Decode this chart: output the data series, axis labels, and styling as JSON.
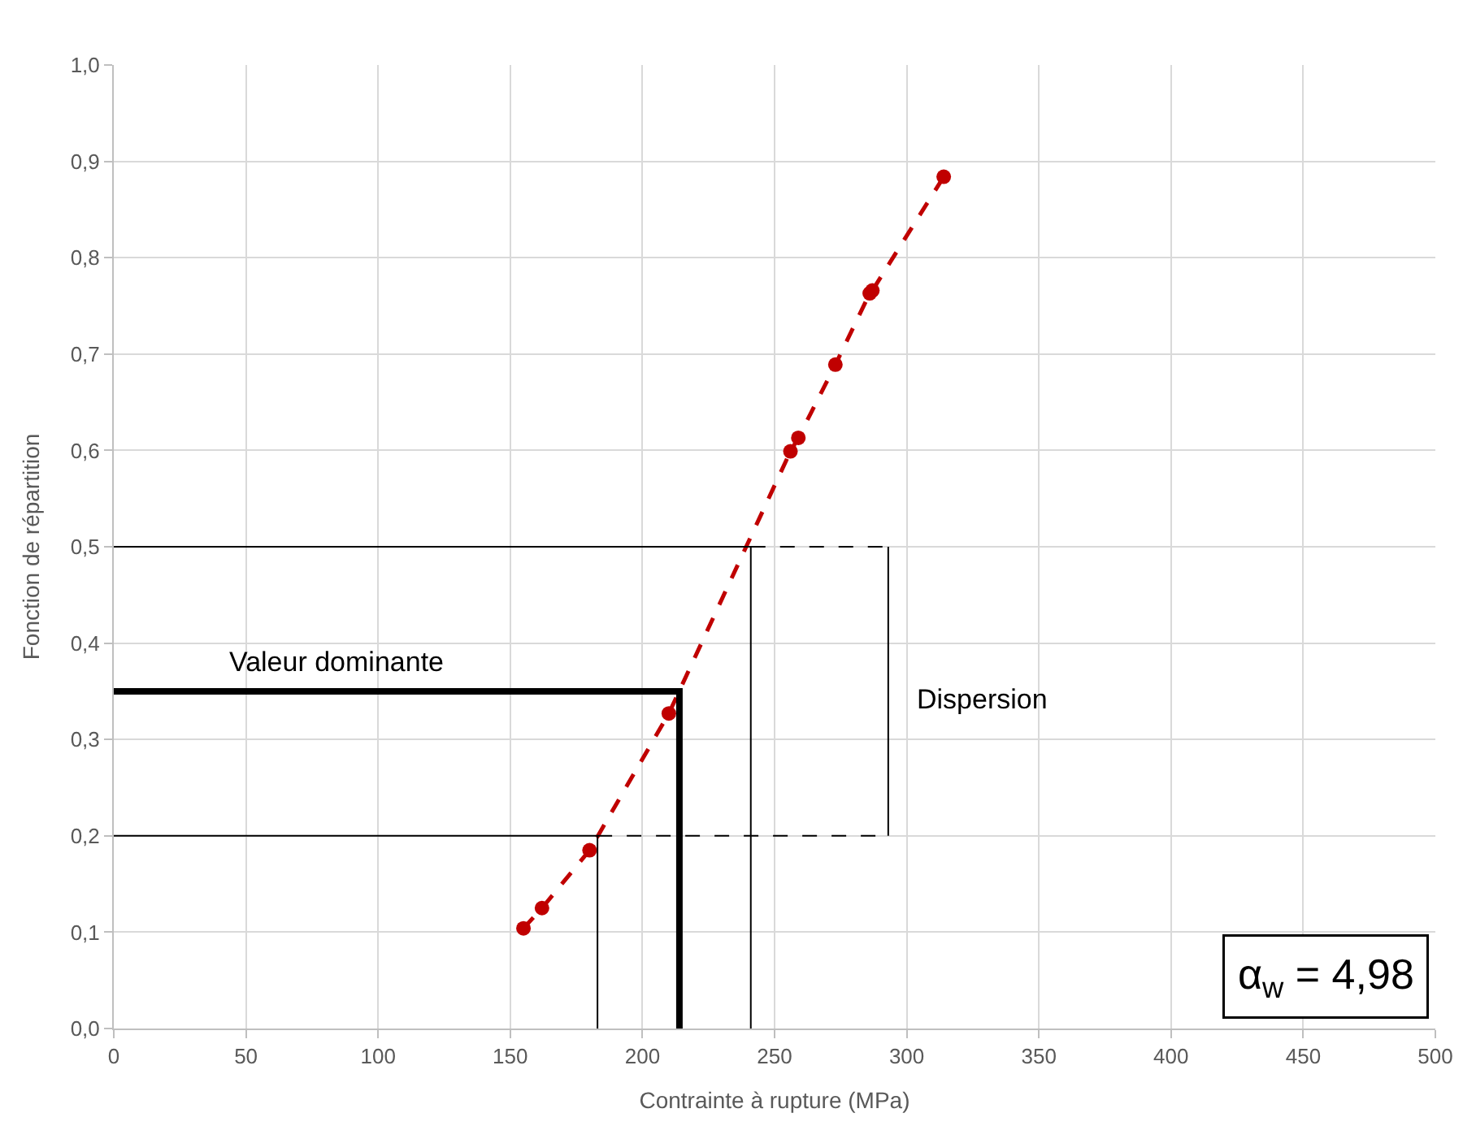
{
  "chart_data": {
    "type": "line",
    "xlabel": "Contrainte à rupture (MPa)",
    "ylabel": "Fonction de répartition",
    "xlim": [
      0,
      500
    ],
    "xticks": [
      0,
      50,
      100,
      150,
      200,
      250,
      300,
      350,
      400,
      450,
      500
    ],
    "ylim": [
      0,
      1
    ],
    "yticks": [
      {
        "value": 0,
        "label": "0,0"
      },
      {
        "value": 0.1,
        "label": "0,1"
      },
      {
        "value": 0.2,
        "label": "0,2"
      },
      {
        "value": 0.3,
        "label": "0,3"
      },
      {
        "value": 0.4,
        "label": "0,4"
      },
      {
        "value": 0.5,
        "label": "0,5"
      },
      {
        "value": 0.6,
        "label": "0,6"
      },
      {
        "value": 0.7,
        "label": "0,7"
      },
      {
        "value": 0.8,
        "label": "0,8"
      },
      {
        "value": 0.9,
        "label": "0,9"
      },
      {
        "value": 1,
        "label": "1,0"
      }
    ],
    "grid": true,
    "series": [
      {
        "color": "#c00000",
        "line_style": "dashed",
        "marker": "circle",
        "x": [
          155,
          162,
          180,
          210,
          256,
          259,
          273,
          286,
          287,
          314
        ],
        "values": [
          0.104,
          0.125,
          0.185,
          0.327,
          0.599,
          0.613,
          0.689,
          0.763,
          0.766,
          0.884
        ]
      },
      {
        "color": "#000000",
        "line_style": "solid",
        "marker": "none",
        "x": [
          0,
          241,
          241
        ],
        "values": [
          0.5,
          0.5,
          0
        ]
      },
      {
        "color": "#000000",
        "line_style": "dashed",
        "marker": "none",
        "x": [
          241,
          293
        ],
        "values": [
          0.5,
          0.5
        ]
      },
      {
        "color": "#000000",
        "line_style": "solid",
        "marker": "none",
        "x": [
          0,
          183,
          183
        ],
        "values": [
          0.2,
          0.2,
          0
        ]
      },
      {
        "color": "#000000",
        "line_style": "dashed",
        "marker": "none",
        "x": [
          183,
          293
        ],
        "values": [
          0.2,
          0.2
        ]
      },
      {
        "color": "#000000",
        "line_style": "solid",
        "marker": "none",
        "x": [
          293,
          293
        ],
        "values": [
          0.2,
          0.5
        ]
      },
      {
        "color": "#000000",
        "line_style": "solid",
        "marker": "none",
        "x": [
          0,
          214,
          214
        ],
        "values": [
          0.35,
          0.35,
          0
        ]
      }
    ],
    "annotations": [
      "Valeur dominante",
      "Dispersion",
      "α$_{w}$ = 4,98"
    ]
  }
}
